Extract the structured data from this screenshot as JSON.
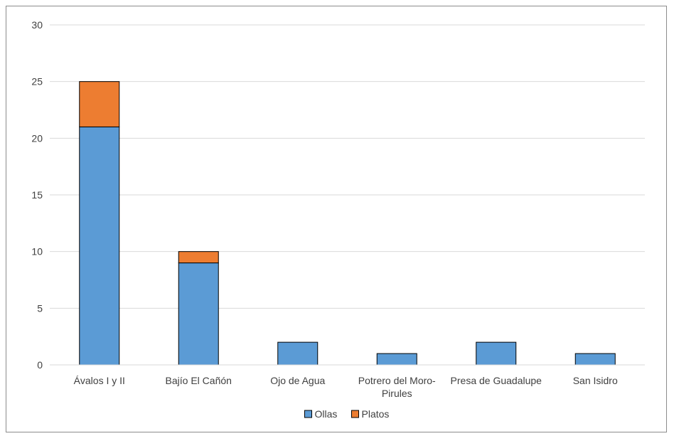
{
  "chart_data": {
    "type": "bar",
    "stacked": true,
    "categories": [
      [
        "Ávalos I y II"
      ],
      [
        "Bajío El Cañón"
      ],
      [
        "Ojo de Agua"
      ],
      [
        "Potrero del Moro-",
        "Pirules"
      ],
      [
        "Presa de Guadalupe"
      ],
      [
        "San Isidro"
      ]
    ],
    "series": [
      {
        "name": "Ollas",
        "color": "#5B9BD5",
        "values": [
          21,
          9,
          2,
          1,
          2,
          1
        ]
      },
      {
        "name": "Platos",
        "color": "#ED7D31",
        "values": [
          4,
          1,
          0,
          0,
          0,
          0
        ]
      }
    ],
    "ylim": [
      0,
      30
    ],
    "yticks": [
      0,
      5,
      10,
      15,
      20,
      25,
      30
    ],
    "grid": true,
    "legend_position": "bottom",
    "title": "",
    "xlabel": "",
    "ylabel": ""
  }
}
